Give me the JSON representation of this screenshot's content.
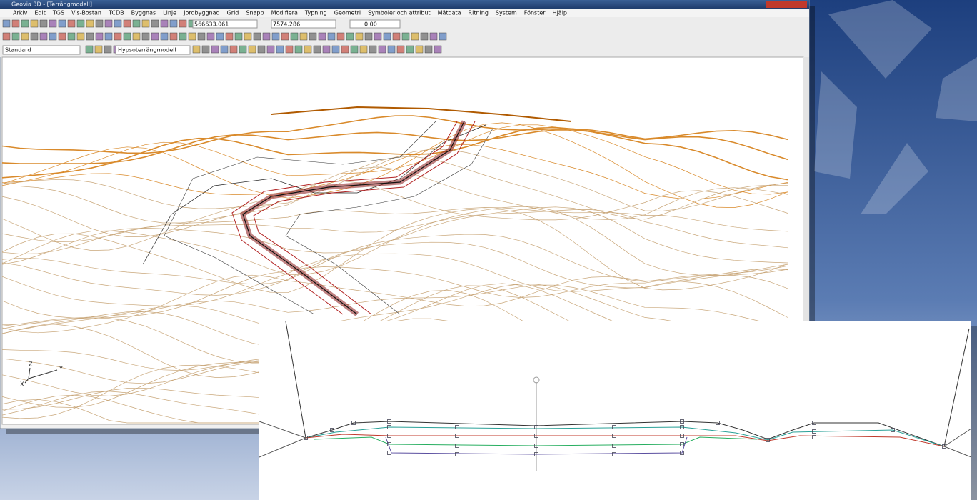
{
  "window": {
    "title": "Geovia 3D - [Terrängmodell]"
  },
  "menu": [
    "Arkiv",
    "Edit",
    "TGS",
    "Vis-Bostan",
    "TCDB",
    "Byggnas",
    "Linje",
    "Jordbyggnad",
    "Grid",
    "Snapp",
    "Modifiera",
    "Typning",
    "Geometri",
    "Symboler och attribut",
    "Mätdata",
    "Ritning",
    "System",
    "Fönster",
    "Hjälp"
  ],
  "coordinates": [
    "566633.061",
    "7574.286",
    "0.00"
  ],
  "toolbar": {
    "layer": "Standard",
    "style": "Hypsoterrängmodell"
  },
  "axis": {
    "z": "Z",
    "y": "Y",
    "x": "X"
  }
}
